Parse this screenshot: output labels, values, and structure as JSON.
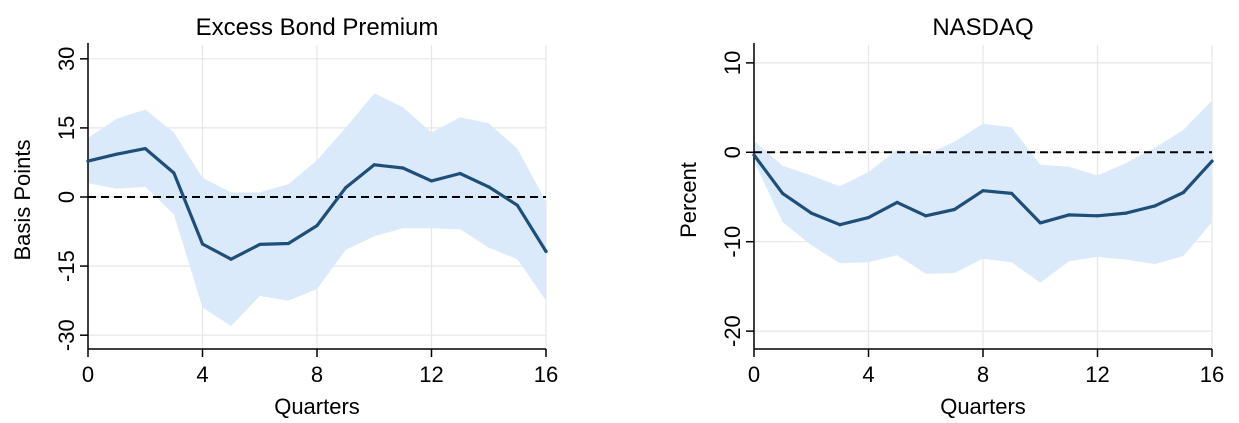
{
  "chart_data": [
    {
      "type": "line",
      "title": "Excess Bond Premium",
      "xlabel": "Quarters",
      "ylabel": "Basis Points",
      "xlim": [
        0,
        16
      ],
      "ylim": [
        -33,
        33
      ],
      "xticks": [
        0,
        4,
        8,
        12,
        16
      ],
      "xtick_labels": [
        "0",
        "4",
        "8",
        "12",
        "16"
      ],
      "yticks": [
        -30,
        -15,
        0,
        15,
        30
      ],
      "ytick_labels": [
        "-30",
        "-15",
        "0",
        "15",
        "30"
      ],
      "grid": true,
      "zero_line": 0,
      "x": [
        0,
        1,
        2,
        3,
        4,
        5,
        6,
        7,
        8,
        9,
        10,
        11,
        12,
        13,
        14,
        15,
        16
      ],
      "values": [
        7.8,
        9.3,
        10.5,
        5.2,
        -10.2,
        -13.5,
        -10.3,
        -10.1,
        -6.2,
        2.0,
        7.0,
        6.3,
        3.5,
        5.1,
        2.2,
        -1.8,
        -11.8
      ],
      "upper": [
        12.8,
        17.0,
        19.0,
        14.0,
        4.2,
        1.0,
        1.0,
        2.8,
        8.0,
        15.0,
        22.5,
        19.5,
        14.0,
        17.3,
        16.0,
        10.5,
        -1.0
      ],
      "lower": [
        3.0,
        1.8,
        2.2,
        -3.8,
        -24.0,
        -28.0,
        -21.5,
        -22.5,
        -20.0,
        -11.5,
        -8.5,
        -6.8,
        -6.8,
        -7.0,
        -11.0,
        -13.5,
        -22.5
      ],
      "line_color": "#1f4e79",
      "band_color": "#dbeafb"
    },
    {
      "type": "line",
      "title": "NASDAQ",
      "xlabel": "Quarters",
      "ylabel": "Percent",
      "xlim": [
        0,
        16
      ],
      "ylim": [
        -22,
        12
      ],
      "xticks": [
        0,
        4,
        8,
        12,
        16
      ],
      "xtick_labels": [
        "0",
        "4",
        "8",
        "12",
        "16"
      ],
      "yticks": [
        -20,
        -10,
        0,
        10
      ],
      "ytick_labels": [
        "-20",
        "-10",
        "0",
        "10"
      ],
      "grid": true,
      "zero_line": 0,
      "x": [
        0,
        1,
        2,
        3,
        4,
        5,
        6,
        7,
        8,
        9,
        10,
        11,
        12,
        13,
        14,
        15,
        16
      ],
      "values": [
        -0.3,
        -4.6,
        -6.8,
        -8.1,
        -7.3,
        -5.6,
        -7.1,
        -6.4,
        -4.3,
        -4.6,
        -7.9,
        -7.0,
        -7.1,
        -6.8,
        -6.0,
        -4.5,
        -1.0
      ],
      "upper": [
        1.3,
        -1.5,
        -2.6,
        -3.8,
        -2.2,
        0.3,
        -0.3,
        1.2,
        3.2,
        2.8,
        -1.4,
        -1.6,
        -2.6,
        -1.2,
        0.5,
        2.5,
        5.8
      ],
      "lower": [
        -1.0,
        -7.8,
        -10.4,
        -12.4,
        -12.3,
        -11.5,
        -13.6,
        -13.5,
        -11.9,
        -12.3,
        -14.6,
        -12.2,
        -11.7,
        -12.0,
        -12.5,
        -11.6,
        -7.8
      ],
      "line_color": "#1f4e79",
      "band_color": "#dbeafb"
    }
  ]
}
